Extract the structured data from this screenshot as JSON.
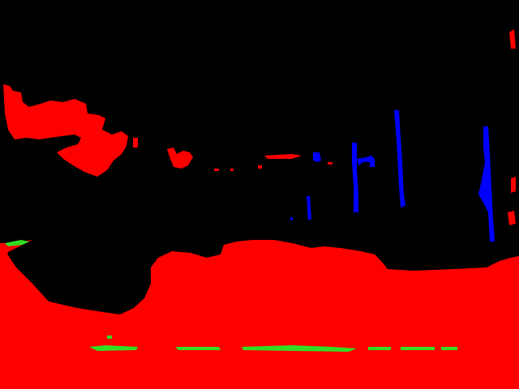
{
  "image": {
    "kind": "segmentation-mask",
    "legend": {
      "background": "#000000",
      "class_red": "#ff0000",
      "class_blue": "#0000ff",
      "class_green": "#33dd22"
    }
  }
}
